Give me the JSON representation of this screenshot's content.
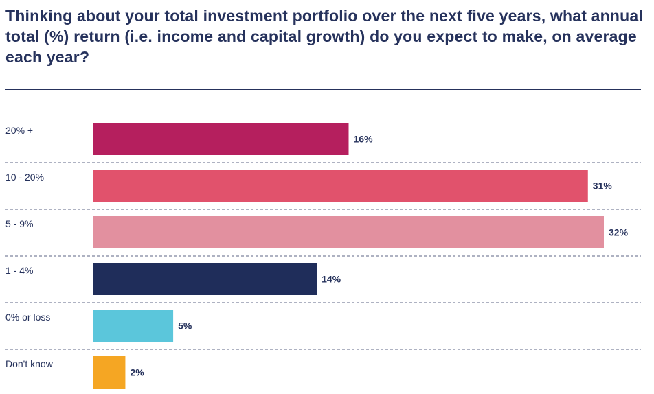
{
  "chart_data": {
    "type": "bar",
    "orientation": "horizontal",
    "title": "Thinking about your total investment portfolio over the next five years, what annual total (%) return (i.e. income and capital growth) do you expect to make, on average each year?",
    "categories": [
      "20% +",
      "10 - 20%",
      "5 - 9%",
      "1 - 4%",
      "0% or loss",
      "Don't know"
    ],
    "values": [
      16,
      31,
      32,
      14,
      5,
      2
    ],
    "value_labels": [
      "16%",
      "31%",
      "32%",
      "14%",
      "5%",
      "2%"
    ],
    "colors": [
      "#b51f5e",
      "#e1526c",
      "#e2909f",
      "#1f2d5a",
      "#5bc6db",
      "#f5a623"
    ],
    "xlim": [
      0,
      32
    ],
    "grid": false,
    "legend": "none"
  }
}
